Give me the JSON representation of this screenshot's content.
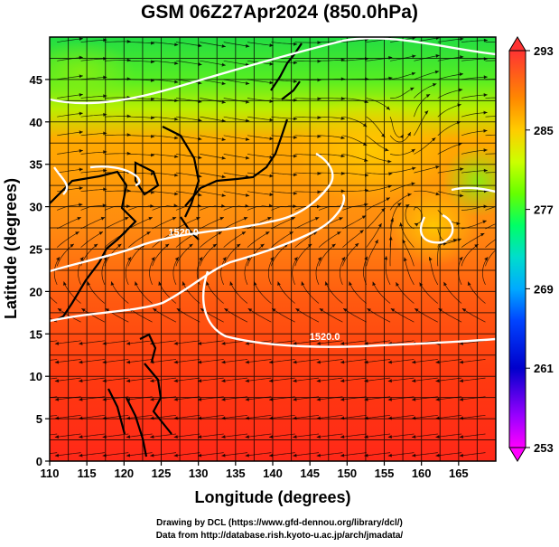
{
  "title": "GSM 06Z27Apr2024 (850.0hPa)",
  "map": {
    "xlabel": "Longitude (degrees)",
    "ylabel": "Latitude  (degrees)",
    "x_range": [
      110,
      170
    ],
    "y_range": [
      0,
      50
    ],
    "x_ticks": [
      110,
      115,
      120,
      125,
      130,
      135,
      140,
      145,
      150,
      155,
      160,
      165
    ],
    "y_ticks": [
      0,
      5,
      10,
      15,
      20,
      25,
      30,
      35,
      40,
      45
    ],
    "field": "temperature (K) shaded with wind streamlines and white pressure-height contours",
    "contour_labels": [
      {
        "text": "1520.0",
        "lon": 147,
        "lat": 14.3
      },
      {
        "text": "1520.0",
        "lon": 128,
        "lat": 26.6
      }
    ]
  },
  "colorbar": {
    "min": 253,
    "max": 293,
    "tick_labels": [
      "293",
      "285",
      "277",
      "269",
      "261",
      "253"
    ],
    "tick_values": [
      293,
      285,
      277,
      269,
      261,
      253
    ],
    "colors": [
      "#ff00ff",
      "#8800ff",
      "#0000cc",
      "#0044ff",
      "#00aaff",
      "#00ddcc",
      "#00ff66",
      "#66ff00",
      "#bbff00",
      "#ffcc00",
      "#ff8800",
      "#ff5500",
      "#ff3333"
    ]
  },
  "credits": {
    "line1": "Drawing by DCL (https://www.gfd-dennou.org/library/dcl/)",
    "line2": "Data from http://database.rish.kyoto-u.ac.jp/arch/jmadata/"
  }
}
